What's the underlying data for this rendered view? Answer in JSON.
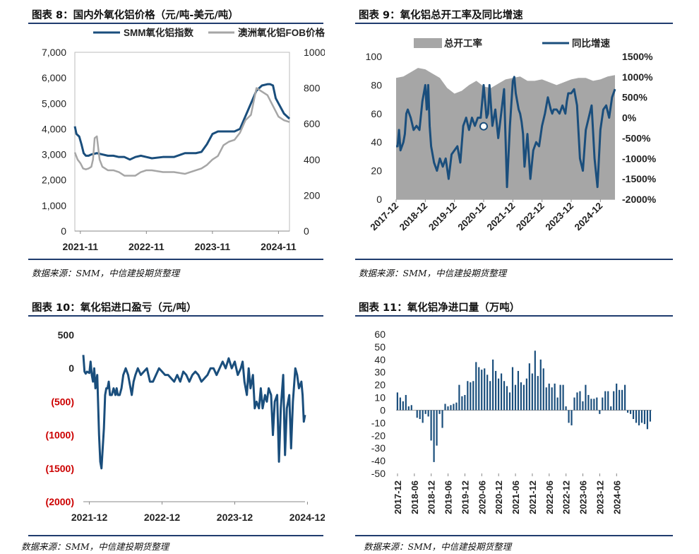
{
  "colors": {
    "navy": "#1a4e7c",
    "gray": "#a6a6a6",
    "rule": "#1f3c6e",
    "red_neg": "#cc0000"
  },
  "charts": [
    {
      "title": "图表 8：国内外氧化铝价格（元/吨-美元/吨）",
      "source": "数据来源：SMM，中信建投期货整理"
    },
    {
      "title": "图表 9：氧化铝总开工率及同比增速",
      "source": "数据来源：SMM，中信建投期货整理"
    },
    {
      "title": "图表 10：氧化铝进口盈亏（元/吨）",
      "source": "数据来源：SMM，中信建投期货整理"
    },
    {
      "title": "图表 11：氧化铝净进口量（万吨）",
      "source": "数据来源：SMM，中信建投期货整理"
    }
  ],
  "chart_data": [
    {
      "type": "line",
      "title": "图表 8：国内外氧化铝价格（元/吨-美元/吨）",
      "x_ticks": [
        "2021-11",
        "2022-11",
        "2023-11",
        "2024-11"
      ],
      "y_left": {
        "range": [
          0,
          7000
        ],
        "ticks": [
          "0",
          "1,000",
          "2,000",
          "3,000",
          "4,000",
          "5,000",
          "6,000",
          "7,000"
        ]
      },
      "y_right": {
        "range": [
          0,
          1000
        ],
        "ticks": [
          "0",
          "200",
          "400",
          "600",
          "800",
          "1000"
        ]
      },
      "legend_position": "top",
      "series": [
        {
          "name": "SMM氧化铝指数",
          "axis": "left",
          "color": "#1a4e7c",
          "x": [
            0,
            0.3,
            0.8,
            1.2,
            1.6,
            2,
            2.5,
            3,
            4,
            5,
            6,
            7,
            8,
            9,
            10,
            11,
            12,
            13,
            14,
            16,
            18,
            20,
            22,
            23,
            24,
            25,
            26,
            27,
            28,
            29,
            30,
            31,
            32,
            33,
            34,
            35,
            35.5,
            36,
            36.5,
            37,
            37.5,
            38,
            38.5,
            39
          ],
          "values": [
            4100,
            3800,
            3700,
            3400,
            3050,
            2950,
            2950,
            3000,
            3050,
            3000,
            2950,
            2950,
            2900,
            2900,
            2800,
            2900,
            2950,
            2900,
            2850,
            2900,
            2900,
            3050,
            3050,
            3100,
            3400,
            3800,
            3900,
            3900,
            3900,
            3900,
            4000,
            4500,
            5000,
            5500,
            5700,
            5750,
            5750,
            5700,
            5200,
            5000,
            4800,
            4600,
            4500,
            4400
          ]
        },
        {
          "name": "澳洲氧化铝FOB价格",
          "axis": "right",
          "color": "#a6a6a6",
          "x": [
            0,
            0.5,
            1,
            1.5,
            2,
            2.5,
            3,
            3.3,
            3.6,
            4,
            4.5,
            5,
            6,
            7,
            8,
            9,
            10,
            11,
            12,
            13,
            14,
            16,
            18,
            20,
            22,
            23,
            24,
            25,
            26,
            27,
            28,
            29,
            30,
            31,
            32,
            33,
            34,
            35,
            36,
            37,
            38,
            39
          ],
          "values": [
            440,
            400,
            380,
            350,
            345,
            350,
            360,
            400,
            520,
            530,
            400,
            360,
            340,
            340,
            330,
            310,
            310,
            310,
            330,
            340,
            340,
            330,
            330,
            320,
            340,
            350,
            370,
            400,
            420,
            480,
            500,
            510,
            550,
            620,
            650,
            800,
            780,
            760,
            700,
            640,
            620,
            610
          ]
        }
      ]
    },
    {
      "type": "bar-line",
      "title": "图表 9：氧化铝总开工率及同比增速",
      "x_ticks": [
        "2017-12",
        "2018-12",
        "2019-12",
        "2020-12",
        "2021-12",
        "2022-12",
        "2023-12",
        "2024-12"
      ],
      "y_left": {
        "range": [
          0,
          100
        ],
        "ticks": [
          "0",
          "20",
          "40",
          "60",
          "80",
          "100"
        ]
      },
      "y_right": {
        "range": [
          -2000,
          1500
        ],
        "ticks": [
          "-2000%",
          "-1500%",
          "-1000%",
          "-500%",
          "0%",
          "500%",
          "1000%",
          "1500%"
        ]
      },
      "legend_position": "top",
      "series": [
        {
          "name": "总开工率",
          "axis": "left",
          "style": "area",
          "color": "#a6a6a6",
          "x": [
            0,
            0.25,
            0.5,
            0.75,
            1,
            1.25,
            1.5,
            1.75,
            2,
            2.25,
            2.5,
            2.75,
            3,
            3.25,
            3.5,
            3.75,
            4,
            4.25,
            4.5,
            4.75,
            5,
            5.25,
            5.5,
            5.75,
            6,
            6.25,
            6.5,
            6.75,
            7,
            7.25,
            7.5
          ],
          "values": [
            85,
            86,
            89,
            92,
            91,
            88,
            85,
            78,
            74,
            76,
            80,
            83,
            79,
            78,
            81,
            84,
            85,
            86,
            83,
            83,
            84,
            82,
            80,
            82,
            84,
            85,
            85,
            83,
            84,
            86,
            87
          ]
        },
        {
          "name": "同比增速",
          "axis": "right",
          "style": "line",
          "color": "#1a4e7c",
          "x": [
            0,
            0.05,
            0.1,
            0.15,
            0.2,
            0.25,
            0.3,
            0.35,
            0.4,
            0.5,
            0.6,
            0.7,
            0.8,
            0.9,
            1,
            1.05,
            1.1,
            1.15,
            1.2,
            1.3,
            1.4,
            1.5,
            1.6,
            1.7,
            1.8,
            1.9,
            2,
            2.1,
            2.2,
            2.3,
            2.4,
            2.5,
            2.6,
            2.7,
            2.8,
            2.9,
            3,
            3.1,
            3.15,
            3.2,
            3.3,
            3.4,
            3.5,
            3.6,
            3.7,
            3.8,
            3.9,
            4,
            4.05,
            4.1,
            4.2,
            4.25,
            4.3,
            4.35,
            4.4,
            4.5,
            4.6,
            4.7,
            4.8,
            4.9,
            5,
            5.1,
            5.2,
            5.3,
            5.35,
            5.4,
            5.5,
            5.6,
            5.7,
            5.8,
            5.85,
            5.9,
            6,
            6.1,
            6.2,
            6.3,
            6.4,
            6.5,
            6.6,
            6.7,
            6.8,
            6.9,
            7,
            7.1,
            7.2,
            7.3,
            7.4,
            7.5
          ],
          "values": [
            -700,
            -700,
            -300,
            -800,
            -700,
            -600,
            -400,
            100,
            200,
            0,
            -300,
            -200,
            -300,
            400,
            800,
            200,
            800,
            -200,
            -700,
            -1100,
            -1300,
            -1000,
            -1200,
            -1000,
            -1500,
            -900,
            -800,
            -700,
            -1100,
            -200,
            0,
            -300,
            0,
            -200,
            0,
            0,
            800,
            0,
            100,
            800,
            -200,
            200,
            -500,
            100,
            700,
            -1700,
            -200,
            900,
            1000,
            600,
            200,
            100,
            -100,
            -400,
            -1200,
            -400,
            -1500,
            -800,
            -600,
            -700,
            -200,
            100,
            500,
            200,
            100,
            200,
            200,
            100,
            300,
            100,
            400,
            600,
            600,
            700,
            300,
            -1000,
            -1300,
            -300,
            0,
            300,
            -1000,
            -1700,
            -300,
            200,
            300,
            0,
            500,
            700
          ]
        }
      ],
      "marker": {
        "x": 3.0,
        "y": -210
      }
    },
    {
      "type": "line",
      "title": "图表 10：氧化铝进口盈亏（元/吨）",
      "x_ticks": [
        "2021-12",
        "2022-12",
        "2023-12",
        "2024-12"
      ],
      "y_ticks": [
        "(2000)",
        "(1500)",
        "(1000)",
        "(500)",
        "0",
        "500"
      ],
      "ylim": [
        -2000,
        500
      ],
      "series": [
        {
          "name": "",
          "color": "#1a4e7c",
          "x": [
            0,
            0.2,
            0.4,
            0.6,
            0.8,
            1,
            1.2,
            1.4,
            1.6,
            1.8,
            2,
            2.3,
            2.6,
            2.8,
            3,
            3.2,
            3.4,
            3.6,
            3.8,
            4,
            4.2,
            4.4,
            4.7,
            5,
            5.3,
            5.5,
            5.7,
            6,
            6.3,
            6.6,
            7,
            7.4,
            7.8,
            8,
            8.3,
            8.6,
            9,
            9.5,
            10,
            10.5,
            11,
            11.5,
            12,
            12.5,
            13,
            13.5,
            14,
            14.5,
            15,
            15.5,
            16,
            16.5,
            17,
            17.5,
            18,
            18.5,
            19,
            19.5,
            20,
            20.5,
            21,
            21.5,
            22,
            22.5,
            23,
            23.5,
            24,
            24.5,
            25,
            25.5,
            26,
            26.3,
            26.6,
            27,
            27.3,
            27.6,
            28,
            28.3,
            28.6,
            29,
            29.3,
            29.6,
            30,
            30.3,
            30.6,
            31,
            31.3,
            31.6,
            32,
            32.3,
            32.6,
            33,
            33.3,
            33.6,
            34,
            34.3,
            34.6,
            35,
            35.3,
            35.6,
            36,
            36.2,
            36.4,
            36.6
          ],
          "values": [
            200,
            -50,
            -80,
            -50,
            -60,
            -70,
            100,
            -100,
            -200,
            0,
            -300,
            -100,
            -1000,
            -1400,
            -1500,
            -1200,
            -900,
            -400,
            -300,
            -300,
            -200,
            -400,
            -400,
            -300,
            -400,
            -300,
            -400,
            -400,
            -300,
            -100,
            0,
            -100,
            -300,
            -400,
            -200,
            -100,
            0,
            -100,
            -50,
            0,
            -200,
            -200,
            -100,
            0,
            -50,
            -100,
            -100,
            -150,
            -200,
            -100,
            -200,
            -50,
            -100,
            -200,
            -100,
            -50,
            -100,
            -200,
            -150,
            -100,
            0,
            0,
            -100,
            0,
            100,
            0,
            150,
            0,
            100,
            -100,
            0,
            100,
            -200,
            -400,
            0,
            -300,
            -100,
            -600,
            -500,
            -600,
            -300,
            -600,
            -400,
            -500,
            -300,
            -400,
            -1000,
            -500,
            -400,
            -1400,
            -600,
            -100,
            -1300,
            -600,
            -400,
            -1200,
            -500,
            0,
            -100,
            -300,
            -200,
            -400,
            -800,
            -700
          ]
        }
      ]
    },
    {
      "type": "bar",
      "title": "图表 11：氧化铝净进口量（万吨）",
      "x_ticks": [
        "2017-12",
        "2018-06",
        "2018-12",
        "2019-06",
        "2019-12",
        "2020-06",
        "2020-12",
        "2021-06",
        "2021-12",
        "2022-06",
        "2022-12",
        "2023-06",
        "2023-12",
        "2024-06"
      ],
      "y_ticks": [
        "-50",
        "-40",
        "-30",
        "-20",
        "-10",
        "0",
        "10",
        "20",
        "30",
        "40",
        "50",
        "60"
      ],
      "ylim": [
        -50,
        60
      ],
      "series": [
        {
          "name": "",
          "color": "#1a4e7c",
          "values": [
            14,
            10,
            7,
            12,
            3,
            4,
            0,
            -6,
            -7,
            -10,
            -3,
            -5,
            -24,
            -41,
            -28,
            -3,
            -14,
            5,
            3,
            4,
            5,
            6,
            20,
            11,
            12,
            23,
            22,
            23,
            38,
            34,
            32,
            33,
            28,
            23,
            40,
            31,
            25,
            29,
            23,
            19,
            14,
            34,
            20,
            31,
            22,
            20,
            25,
            37,
            29,
            47,
            27,
            40,
            33,
            18,
            21,
            18,
            21,
            10,
            20,
            20,
            3,
            -10,
            -12,
            10,
            14,
            15,
            7,
            20,
            12,
            9,
            9,
            10,
            -3,
            10,
            15,
            15,
            3,
            15,
            21,
            16,
            16,
            20,
            -2,
            -3,
            -7,
            -10,
            -12,
            -10,
            -11,
            -15,
            -9
          ]
        }
      ]
    }
  ]
}
